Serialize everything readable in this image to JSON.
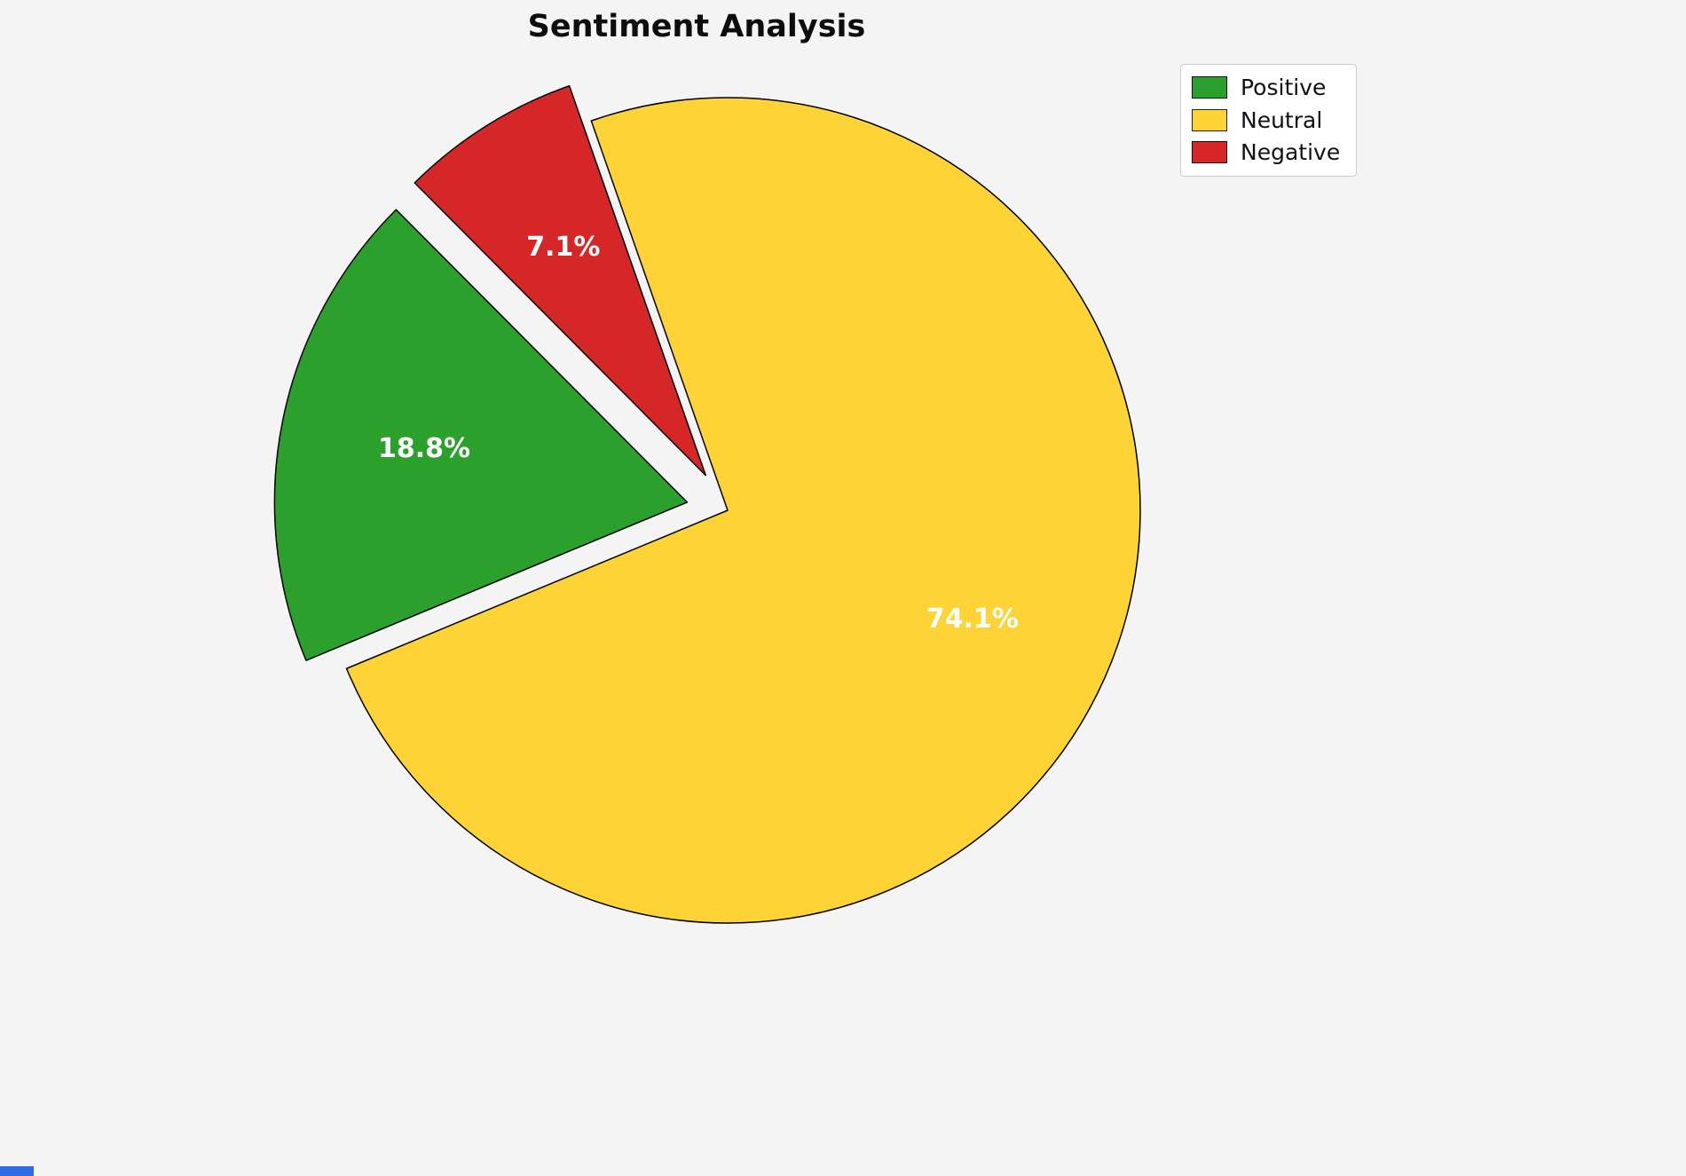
{
  "page": {
    "background": "#f4f4f4",
    "bottom_left_fragment_color": "#2e6be6"
  },
  "chart_data": {
    "type": "pie",
    "title": "Sentiment Analysis",
    "categories": [
      "Positive",
      "Neutral",
      "Negative"
    ],
    "values": [
      18.8,
      74.1,
      7.1
    ],
    "unit": "%",
    "slices": [
      {
        "label": "Positive",
        "value": 18.8,
        "display": "18.8%",
        "color": "#2ca02c",
        "explode": 0.1
      },
      {
        "label": "Neutral",
        "value": 74.1,
        "display": "74.1%",
        "color": "#fdd335",
        "explode": 0.0
      },
      {
        "label": "Negative",
        "value": 7.1,
        "display": "7.1%",
        "color": "#d62728",
        "explode": 0.1
      }
    ],
    "draw_order": [
      "Neutral",
      "Positive",
      "Negative"
    ],
    "start_angle_deg": 109.3,
    "direction": "clockwise",
    "pct_label_color": "#ffffff",
    "pct_label_distance": 0.65,
    "edge_color": "#000000",
    "legend_position": "upper right",
    "background": "#f4f4f4"
  },
  "legend": {
    "items": [
      {
        "label": "Positive",
        "color": "#2ca02c"
      },
      {
        "label": "Neutral",
        "color": "#fdd335"
      },
      {
        "label": "Negative",
        "color": "#d62728"
      }
    ]
  }
}
